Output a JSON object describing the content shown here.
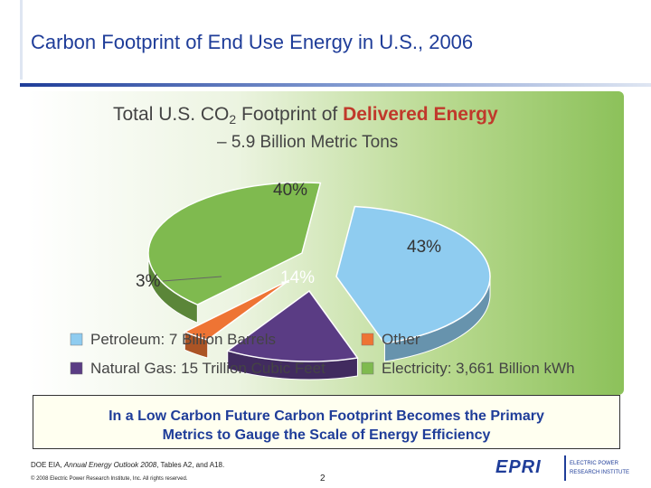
{
  "slide": {
    "title": "Carbon Footprint of End Use Energy in U.S., 2006",
    "callout_line1": "In a Low Carbon Future Carbon Footprint Becomes the Primary",
    "callout_line2": "Metrics to Gauge the Scale of Energy Efficiency",
    "source_prefix": "DOE EIA, ",
    "source_italic": "Annual Energy Outlook 2008",
    "source_suffix": ", Tables A2, and A18.",
    "copyright": "© 2008 Electric Power Research Institute, Inc. All rights reserved.",
    "page_number": "2",
    "logo": {
      "wordmark": "EPRI",
      "line1": "ELECTRIC POWER",
      "line2": "RESEARCH INSTITUTE",
      "color": "#1f3d99"
    }
  },
  "chart_data": {
    "type": "pie",
    "title_part1": "Total U.S. CO",
    "title_sub": "2",
    "title_part2": " Footprint of ",
    "title_highlight": "Delivered Energy",
    "subtitle": "– 5.9 Billion Metric Tons",
    "slices": [
      {
        "name": "Petroleum",
        "value": 43,
        "label": "43%",
        "color": "#8fccf0",
        "legend": "Petroleum: 7 Billion Barrels"
      },
      {
        "name": "Natural Gas",
        "value": 14,
        "label": "14%",
        "color": "#5a3c84",
        "legend": "Natural Gas: 15 Trillion Cubic Feet"
      },
      {
        "name": "Other",
        "value": 3,
        "label": "3%",
        "color": "#ee7434",
        "legend": "Other"
      },
      {
        "name": "Electricity",
        "value": 40,
        "label": "40%",
        "color": "#7fba4f",
        "legend": "Electricity: 3,661 Billion kWh"
      }
    ],
    "legend_placement": "bottom"
  }
}
